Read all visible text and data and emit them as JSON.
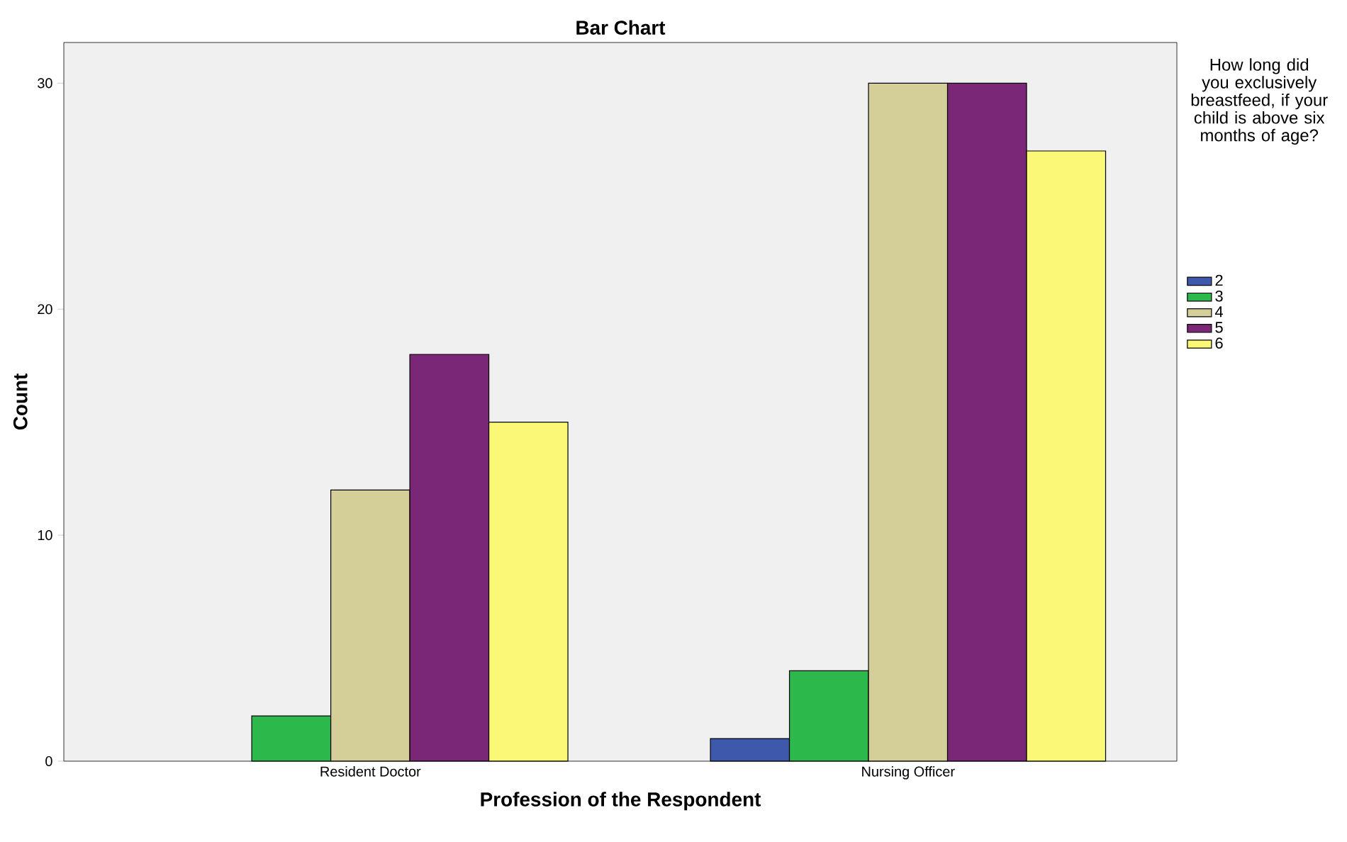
{
  "chart_data": {
    "type": "bar",
    "title": "Bar Chart",
    "xlabel": "Profession of the Respondent",
    "ylabel": "Count",
    "legend_title": "How long did you exclusively breastfeed, if your child is above six months of age?",
    "categories": [
      "Resident Doctor",
      "Nursing Officer"
    ],
    "series": [
      {
        "name": "2",
        "color": "#3e58ac",
        "values": [
          null,
          1
        ]
      },
      {
        "name": "3",
        "color": "#2db84b",
        "values": [
          2,
          4
        ]
      },
      {
        "name": "4",
        "color": "#d4ce98",
        "values": [
          12,
          30
        ]
      },
      {
        "name": "5",
        "color": "#7b2777",
        "values": [
          18,
          30
        ]
      },
      {
        "name": "6",
        "color": "#fbf877",
        "values": [
          15,
          27
        ]
      }
    ],
    "ylim": [
      0,
      31.8
    ],
    "yticks": [
      0,
      10,
      20,
      30
    ],
    "grid": false,
    "legend": "right"
  }
}
